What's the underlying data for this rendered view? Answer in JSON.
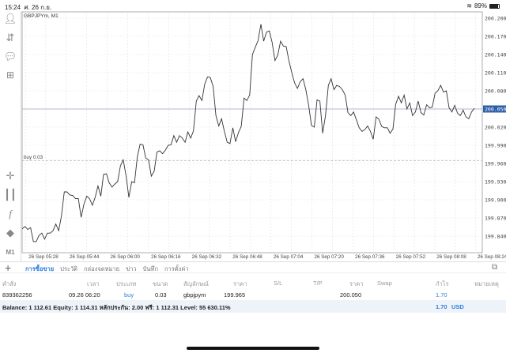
{
  "status": {
    "time": "15:24",
    "date": "ศ. 26 ก.ย.",
    "battery": "89%"
  },
  "chart": {
    "symbol": "GBPJPYm, M1",
    "current_price": "200.050",
    "order_label": "buy 0.03"
  },
  "chart_data": {
    "type": "line",
    "title": "GBPJPYm, M1",
    "ylim": [
      199.815,
      200.225
    ],
    "y_ticks": [
      "200.200",
      "200.170",
      "200.140",
      "200.110",
      "200.080",
      "200.050",
      "200.020",
      "199.990",
      "199.960",
      "199.930",
      "199.900",
      "199.870",
      "199.840"
    ],
    "x_ticks": [
      "26 Sep 05:28",
      "26 Sep 05:44",
      "26 Sep 06:00",
      "26 Sep 06:16",
      "26 Sep 06:32",
      "26 Sep 06:48",
      "26 Sep 07:04",
      "26 Sep 07:20",
      "26 Sep 07:36",
      "26 Sep 07:52",
      "26 Sep 08:08",
      "26 Sep 08:24"
    ],
    "current_price": 200.05,
    "order_price": 199.965,
    "values": [
      199.852,
      199.856,
      199.851,
      199.854,
      199.831,
      199.831,
      199.841,
      199.845,
      199.835,
      199.845,
      199.845,
      199.849,
      199.86,
      199.849,
      199.873,
      199.913,
      199.913,
      199.908,
      199.907,
      199.902,
      199.902,
      199.871,
      199.893,
      199.906,
      199.902,
      199.891,
      199.904,
      199.923,
      199.906,
      199.942,
      199.943,
      199.928,
      199.921,
      199.926,
      199.93,
      199.956,
      199.966,
      199.939,
      199.904,
      199.93,
      199.928,
      199.971,
      199.992,
      199.991,
      199.969,
      199.966,
      199.939,
      199.947,
      199.979,
      199.981,
      199.976,
      199.982,
      199.99,
      199.991,
      200.006,
      199.995,
      200.006,
      200.002,
      199.995,
      200.012,
      200.002,
      200.014,
      200.063,
      200.072,
      200.064,
      200.091,
      200.103,
      200.102,
      200.087,
      200.039,
      200.022,
      200.034,
      200.013,
      199.995,
      199.993,
      200.019,
      199.996,
      200.011,
      200.021,
      200.068,
      200.064,
      200.073,
      200.14,
      200.152,
      200.163,
      200.19,
      200.162,
      200.177,
      200.179,
      200.16,
      200.13,
      200.139,
      200.162,
      200.154,
      200.153,
      200.129,
      200.11,
      200.093,
      200.084,
      200.095,
      200.1,
      200.082,
      200.056,
      200.023,
      200.02,
      200.065,
      200.063,
      200.01,
      200.039,
      200.089,
      200.1,
      200.082,
      200.089,
      200.087,
      200.082,
      200.073,
      200.044,
      200.039,
      200.045,
      200.032,
      200.019,
      200.013,
      200.016,
      200.022,
      200.013,
      200.0,
      200.037,
      200.033,
      200.021,
      200.019,
      200.019,
      200.01,
      200.017,
      200.058,
      200.071,
      200.06,
      200.073,
      200.05,
      200.06,
      200.039,
      200.045,
      200.063,
      200.044,
      200.04,
      200.057,
      200.052,
      200.053,
      200.076,
      200.08,
      200.089,
      200.078,
      200.08,
      200.052,
      200.045,
      200.056,
      200.043,
      200.039,
      200.048,
      200.037,
      200.034,
      200.045,
      200.051
    ]
  },
  "left_toolbar": {
    "timeframe": "M1"
  },
  "tabs": [
    "การซื้อขาย",
    "ประวัติ",
    "กล่องจดหมาย",
    "ข่าว",
    "บันทึก",
    "การตั้งค่า"
  ],
  "table": {
    "headers": [
      "คำสั่ง",
      "เวลา",
      "ประเภท",
      "ขนาด",
      "สัญลักษณ์",
      "ราคา",
      "S/L",
      "T/P",
      "ราคา",
      "Swap",
      "กำไร",
      "หมายเหตุ"
    ],
    "row": {
      "order": "839362256",
      "time": "09.26 06:20",
      "type": "buy",
      "size": "0.03",
      "symbol": "gbpjpym",
      "open_price": "199.965",
      "sl": "",
      "tp": "",
      "price": "200.050",
      "swap": "",
      "profit": "1.70",
      "comment": ""
    },
    "balance": "Balance: 1 112.61 Equity: 1 114.31 หลักประกัน: 2.00 ฟรี: 1 112.31 Level: 55 630.11%",
    "total_profit": "1.70",
    "currency": "USD"
  },
  "colors": {
    "accent": "#2f7de0",
    "price_line": "#b0b8c8",
    "balance_bg": "#eef3fa"
  }
}
